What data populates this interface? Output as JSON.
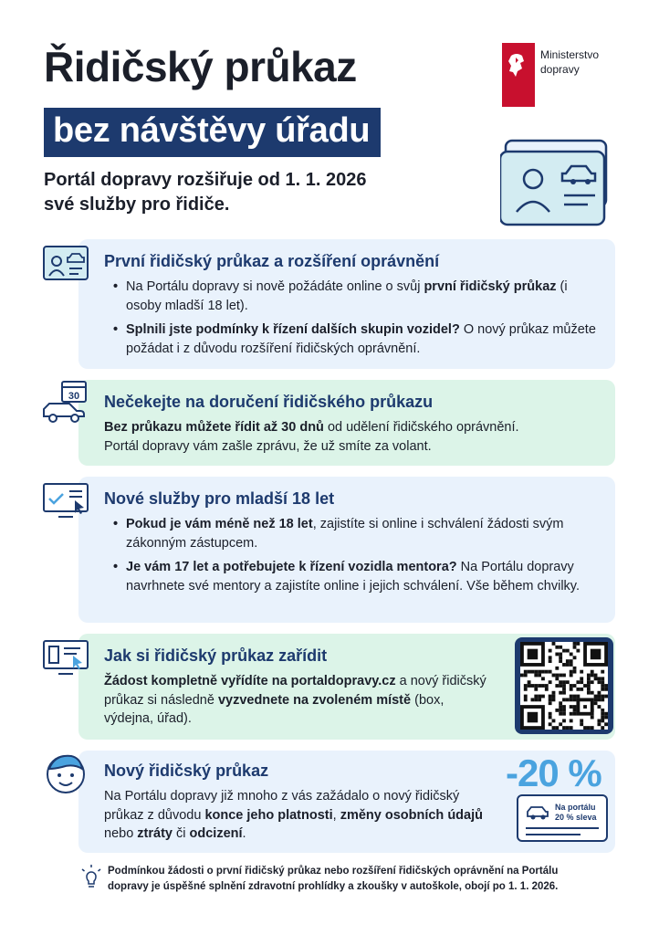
{
  "header": {
    "title": "Řidičský průkaz",
    "subtitle": "bez návštěvy úřadu",
    "lead_line1": "Portál dopravy rozšiřuje od 1. 1. 2026",
    "lead_line2": "své služby pro řidiče."
  },
  "logo": {
    "line1": "Ministerstvo",
    "line2": "dopravy",
    "flag_color": "#c8102e"
  },
  "colors": {
    "navy": "#1d3a6e",
    "panel_blue": "#e9f2fc",
    "panel_green": "#dcf4e8",
    "accent_blue": "#4aa3df"
  },
  "sections": [
    {
      "icon": "id-card-icon",
      "title": "První řidičský průkaz a rozšíření oprávnění",
      "items": [
        {
          "pre": "Na Portálu dopravy si nově požádáte online o svůj ",
          "bold": "první řidičský průkaz",
          "post": " (i osoby mladší 18 let)."
        },
        {
          "bold": "Splnili jste podmínky k řízení dalších skupin vozidel?",
          "post": " O nový průkaz můžete požádat i z důvodu rozšíření řidičských oprávnění."
        }
      ]
    },
    {
      "icon": "car-calendar-icon",
      "calendar_number": "30",
      "title": "Nečekejte na doručení řidičského průkazu",
      "bold": "Bez průkazu můžete řídit až 30 dnů",
      "text1": " od udělení řidičského oprávnění.",
      "text2": "Portál dopravy vám zašle zprávu, že už smíte za volant."
    },
    {
      "icon": "monitor-check-icon",
      "title": "Nové služby pro mladší 18 let",
      "items": [
        {
          "bold": "Pokud je vám méně než 18 let",
          "post": ", zajistíte si online i schválení žádosti svým zákonným zástupcem."
        },
        {
          "bold": "Je vám 17 let a potřebujete k řízení vozidla mentora?",
          "post": " Na Portálu dopravy navrhnete své mentory a zajistíte online i jejich schválení. Vše během chvilky."
        }
      ]
    },
    {
      "icon": "monitor-form-icon",
      "title": "Jak si řidičský průkaz zařídit",
      "bold1": "Žádost kompletně vyřídíte na portaldopravy.cz",
      "text1": " a nový řidičský průkaz si následně ",
      "bold2": "vyzvednete na zvoleném místě",
      "text2": " (box, výdejna, úřad)."
    },
    {
      "icon": "person-face-icon",
      "title": "Nový řidičský průkaz",
      "text1": "Na Portálu dopravy již mnoho z vás zažádalo o nový řidičský průkaz z důvodu ",
      "bold1": "konce jeho platnosti",
      "text2": ", ",
      "bold2": "změny osobních údajů",
      "text3": " nebo ",
      "bold3": "ztráty",
      "text4": " či ",
      "bold4": "odcizení",
      "text5": "."
    }
  ],
  "discount": {
    "percent": "-20 %",
    "card_line1": "Na portálu",
    "card_line2": "20 % sleva"
  },
  "footnote": {
    "line1": "Podmínkou žádosti o první řidičský průkaz nebo rozšíření řidičských oprávnění na Portálu",
    "line2": "dopravy je úspěšné splnění zdravotní prohlídky a zkoušky v autoškole, obojí po 1. 1. 2026."
  }
}
